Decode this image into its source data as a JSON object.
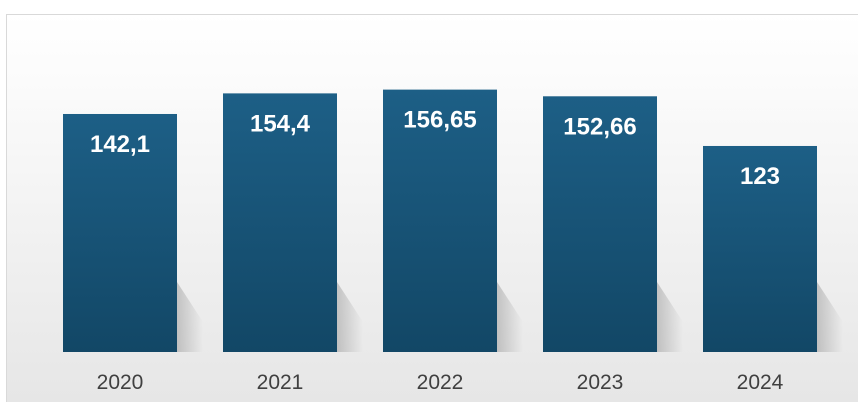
{
  "chart_data": {
    "type": "bar",
    "categories": [
      "2020",
      "2021",
      "2022",
      "2023",
      "2024"
    ],
    "values": [
      142.1,
      154.4,
      156.65,
      152.66,
      123
    ],
    "data_labels": [
      "142,1",
      "154,4",
      "156,65",
      "152,66",
      "123"
    ],
    "title": "",
    "xlabel": "",
    "ylabel": "",
    "ylim": [
      0,
      160
    ],
    "grid": false,
    "legend": "none",
    "colors": {
      "bar_top": "#1d5f86",
      "bar_bottom": "#124766",
      "label": "#ffffff",
      "axis_text": "#404040",
      "frame": "#d9d9d9"
    }
  }
}
